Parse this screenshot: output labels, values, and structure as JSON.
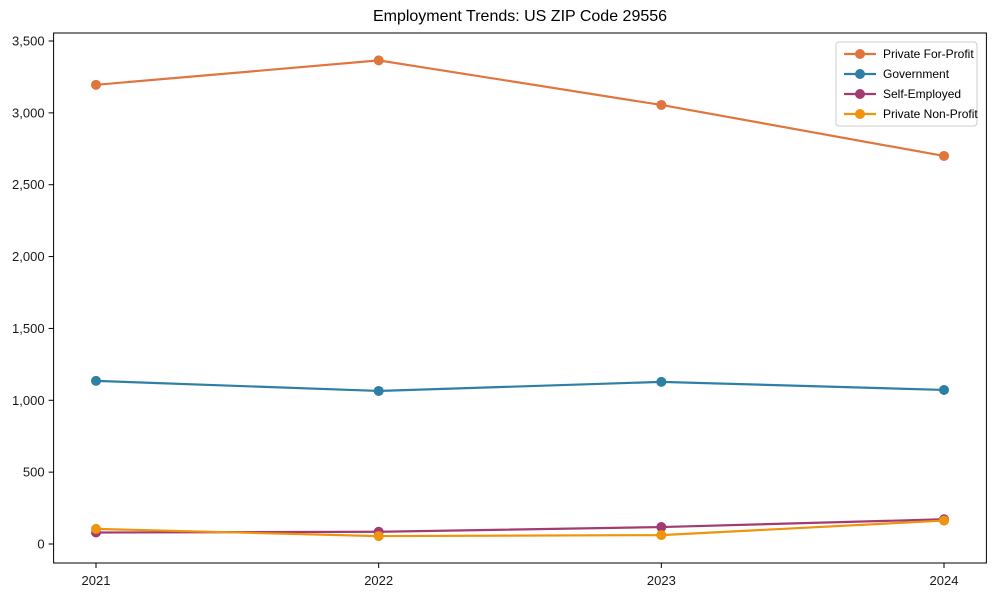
{
  "chart_data": {
    "type": "line",
    "title": "Employment Trends: US ZIP Code 29556",
    "xlabel": "",
    "ylabel": "",
    "x": [
      "2021",
      "2022",
      "2023",
      "2024"
    ],
    "series": [
      {
        "name": "Private For-Profit",
        "color": "#e0763e",
        "values": [
          3195,
          3365,
          3055,
          2700
        ]
      },
      {
        "name": "Government",
        "color": "#2e7fa6",
        "values": [
          1135,
          1065,
          1128,
          1072
        ]
      },
      {
        "name": "Self-Employed",
        "color": "#a23b72",
        "values": [
          80,
          85,
          118,
          172
        ]
      },
      {
        "name": "Private Non-Profit",
        "color": "#f0930d",
        "values": [
          105,
          55,
          62,
          163
        ]
      }
    ],
    "y_ticks": [
      0,
      500,
      1000,
      1500,
      2000,
      2500,
      3000,
      3500
    ],
    "y_tick_labels": [
      "0",
      "500",
      "1,000",
      "1,500",
      "2,000",
      "2,500",
      "3,000",
      "3,500"
    ],
    "ylim": [
      -130,
      3555
    ],
    "grid": false,
    "legend_position": "top-right",
    "marker": "circle",
    "line_width": 2.2,
    "marker_radius": 5,
    "axis_color": "#000000",
    "tick_label_color": "#1a1a1a",
    "legend_border_color": "#cccccc",
    "background_color": "#ffffff"
  }
}
